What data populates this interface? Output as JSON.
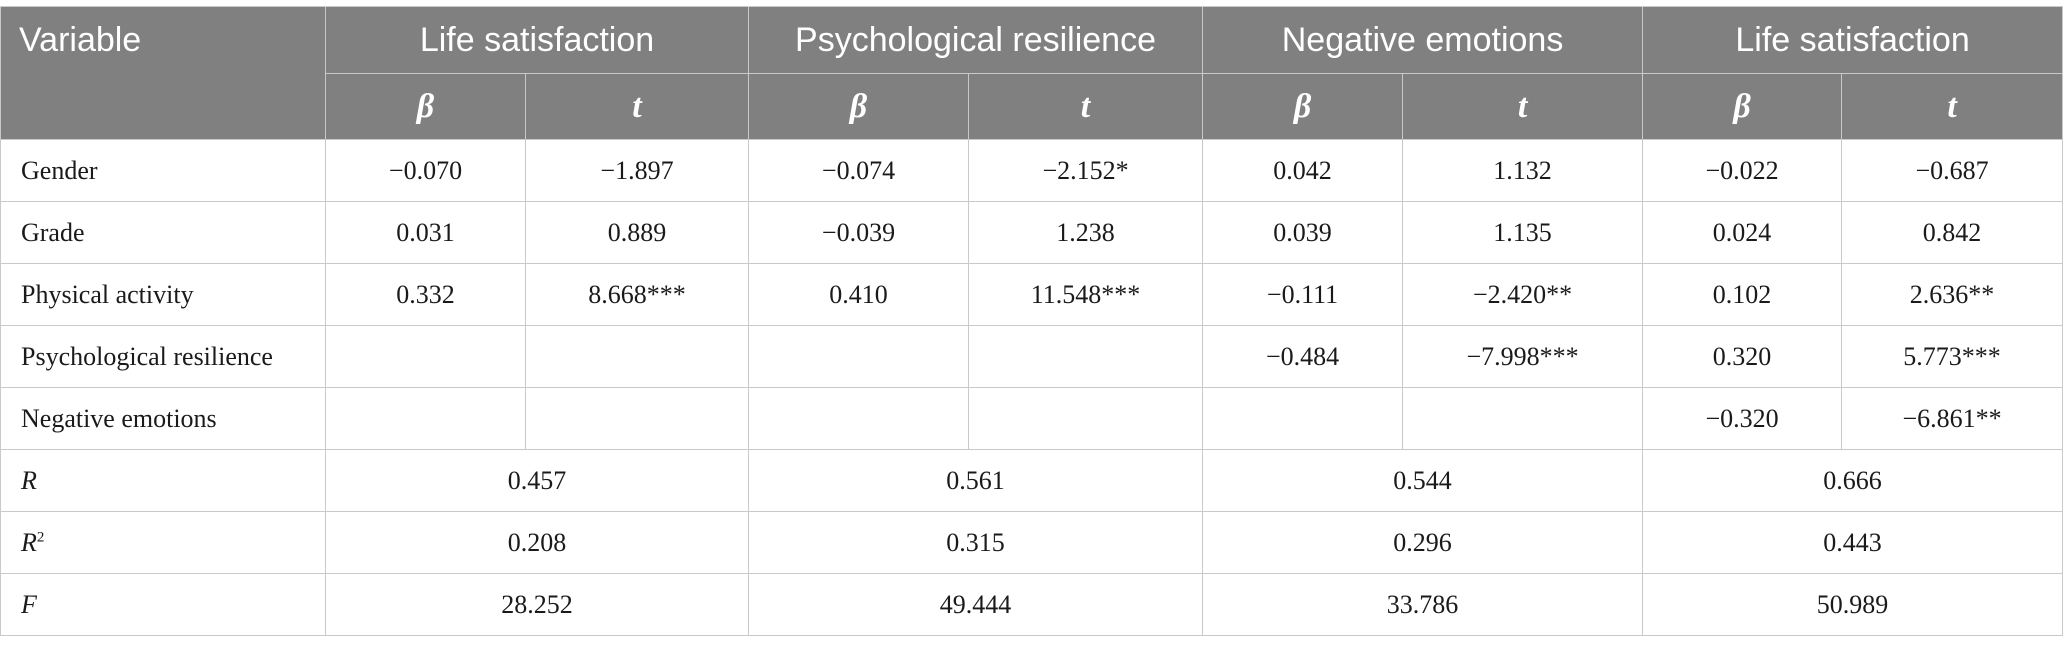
{
  "header": {
    "variable_label": "Variable",
    "groups": [
      "Life satisfaction",
      "Psychological resilience",
      "Negative emotions",
      "Life satisfaction"
    ],
    "beta_label": "β",
    "t_label": "t"
  },
  "rows": [
    {
      "label": "Gender",
      "cells": [
        "−0.070",
        "−1.897",
        "−0.074",
        "−2.152*",
        "0.042",
        "1.132",
        "−0.022",
        "−0.687"
      ]
    },
    {
      "label": "Grade",
      "cells": [
        "0.031",
        "0.889",
        "−0.039",
        "1.238",
        "0.039",
        "1.135",
        "0.024",
        "0.842"
      ]
    },
    {
      "label": "Physical activity",
      "cells": [
        "0.332",
        "8.668***",
        "0.410",
        "11.548***",
        "−0.111",
        "−2.420**",
        "0.102",
        "2.636**"
      ]
    },
    {
      "label": "Psychological resilience",
      "cells": [
        "",
        "",
        "",
        "",
        "−0.484",
        "−7.998***",
        "0.320",
        "5.773***"
      ]
    },
    {
      "label": "Negative emotions",
      "cells": [
        "",
        "",
        "",
        "",
        "",
        "",
        "−0.320",
        "−6.861**"
      ]
    }
  ],
  "stats": [
    {
      "label": "R",
      "sup": "",
      "values": [
        "0.457",
        "0.561",
        "0.544",
        "0.666"
      ]
    },
    {
      "label": "R",
      "sup": "2",
      "values": [
        "0.208",
        "0.315",
        "0.296",
        "0.443"
      ]
    },
    {
      "label": "F",
      "sup": "",
      "values": [
        "28.252",
        "49.444",
        "33.786",
        "50.989"
      ]
    }
  ]
}
